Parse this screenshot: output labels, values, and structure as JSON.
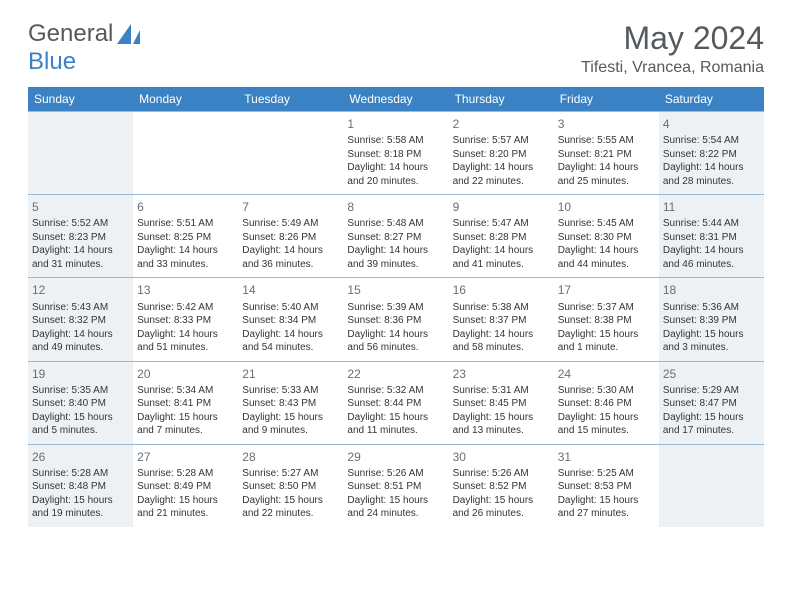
{
  "logo": {
    "text1": "General",
    "text2": "Blue"
  },
  "header": {
    "title": "May 2024",
    "location": "Tifesti, Vrancea, Romania"
  },
  "colors": {
    "header_bg": "#3a82c4",
    "header_text": "#ffffff",
    "shade_bg": "#eef1f4",
    "border": "#98b9d6",
    "logo_gray": "#555a5e",
    "logo_blue": "#3a82c4",
    "text": "#343434",
    "daynum": "#6a6f74"
  },
  "weekdays": [
    "Sunday",
    "Monday",
    "Tuesday",
    "Wednesday",
    "Thursday",
    "Friday",
    "Saturday"
  ],
  "weeks": [
    [
      {
        "empty": true,
        "shaded": true
      },
      {
        "empty": true,
        "shaded": false
      },
      {
        "empty": true,
        "shaded": false
      },
      {
        "num": "1",
        "shaded": false,
        "l1": "Sunrise: 5:58 AM",
        "l2": "Sunset: 8:18 PM",
        "l3": "Daylight: 14 hours",
        "l4": "and 20 minutes."
      },
      {
        "num": "2",
        "shaded": false,
        "l1": "Sunrise: 5:57 AM",
        "l2": "Sunset: 8:20 PM",
        "l3": "Daylight: 14 hours",
        "l4": "and 22 minutes."
      },
      {
        "num": "3",
        "shaded": false,
        "l1": "Sunrise: 5:55 AM",
        "l2": "Sunset: 8:21 PM",
        "l3": "Daylight: 14 hours",
        "l4": "and 25 minutes."
      },
      {
        "num": "4",
        "shaded": true,
        "l1": "Sunrise: 5:54 AM",
        "l2": "Sunset: 8:22 PM",
        "l3": "Daylight: 14 hours",
        "l4": "and 28 minutes."
      }
    ],
    [
      {
        "num": "5",
        "shaded": true,
        "l1": "Sunrise: 5:52 AM",
        "l2": "Sunset: 8:23 PM",
        "l3": "Daylight: 14 hours",
        "l4": "and 31 minutes."
      },
      {
        "num": "6",
        "shaded": false,
        "l1": "Sunrise: 5:51 AM",
        "l2": "Sunset: 8:25 PM",
        "l3": "Daylight: 14 hours",
        "l4": "and 33 minutes."
      },
      {
        "num": "7",
        "shaded": false,
        "l1": "Sunrise: 5:49 AM",
        "l2": "Sunset: 8:26 PM",
        "l3": "Daylight: 14 hours",
        "l4": "and 36 minutes."
      },
      {
        "num": "8",
        "shaded": false,
        "l1": "Sunrise: 5:48 AM",
        "l2": "Sunset: 8:27 PM",
        "l3": "Daylight: 14 hours",
        "l4": "and 39 minutes."
      },
      {
        "num": "9",
        "shaded": false,
        "l1": "Sunrise: 5:47 AM",
        "l2": "Sunset: 8:28 PM",
        "l3": "Daylight: 14 hours",
        "l4": "and 41 minutes."
      },
      {
        "num": "10",
        "shaded": false,
        "l1": "Sunrise: 5:45 AM",
        "l2": "Sunset: 8:30 PM",
        "l3": "Daylight: 14 hours",
        "l4": "and 44 minutes."
      },
      {
        "num": "11",
        "shaded": true,
        "l1": "Sunrise: 5:44 AM",
        "l2": "Sunset: 8:31 PM",
        "l3": "Daylight: 14 hours",
        "l4": "and 46 minutes."
      }
    ],
    [
      {
        "num": "12",
        "shaded": true,
        "l1": "Sunrise: 5:43 AM",
        "l2": "Sunset: 8:32 PM",
        "l3": "Daylight: 14 hours",
        "l4": "and 49 minutes."
      },
      {
        "num": "13",
        "shaded": false,
        "l1": "Sunrise: 5:42 AM",
        "l2": "Sunset: 8:33 PM",
        "l3": "Daylight: 14 hours",
        "l4": "and 51 minutes."
      },
      {
        "num": "14",
        "shaded": false,
        "l1": "Sunrise: 5:40 AM",
        "l2": "Sunset: 8:34 PM",
        "l3": "Daylight: 14 hours",
        "l4": "and 54 minutes."
      },
      {
        "num": "15",
        "shaded": false,
        "l1": "Sunrise: 5:39 AM",
        "l2": "Sunset: 8:36 PM",
        "l3": "Daylight: 14 hours",
        "l4": "and 56 minutes."
      },
      {
        "num": "16",
        "shaded": false,
        "l1": "Sunrise: 5:38 AM",
        "l2": "Sunset: 8:37 PM",
        "l3": "Daylight: 14 hours",
        "l4": "and 58 minutes."
      },
      {
        "num": "17",
        "shaded": false,
        "l1": "Sunrise: 5:37 AM",
        "l2": "Sunset: 8:38 PM",
        "l3": "Daylight: 15 hours",
        "l4": "and 1 minute."
      },
      {
        "num": "18",
        "shaded": true,
        "l1": "Sunrise: 5:36 AM",
        "l2": "Sunset: 8:39 PM",
        "l3": "Daylight: 15 hours",
        "l4": "and 3 minutes."
      }
    ],
    [
      {
        "num": "19",
        "shaded": true,
        "l1": "Sunrise: 5:35 AM",
        "l2": "Sunset: 8:40 PM",
        "l3": "Daylight: 15 hours",
        "l4": "and 5 minutes."
      },
      {
        "num": "20",
        "shaded": false,
        "l1": "Sunrise: 5:34 AM",
        "l2": "Sunset: 8:41 PM",
        "l3": "Daylight: 15 hours",
        "l4": "and 7 minutes."
      },
      {
        "num": "21",
        "shaded": false,
        "l1": "Sunrise: 5:33 AM",
        "l2": "Sunset: 8:43 PM",
        "l3": "Daylight: 15 hours",
        "l4": "and 9 minutes."
      },
      {
        "num": "22",
        "shaded": false,
        "l1": "Sunrise: 5:32 AM",
        "l2": "Sunset: 8:44 PM",
        "l3": "Daylight: 15 hours",
        "l4": "and 11 minutes."
      },
      {
        "num": "23",
        "shaded": false,
        "l1": "Sunrise: 5:31 AM",
        "l2": "Sunset: 8:45 PM",
        "l3": "Daylight: 15 hours",
        "l4": "and 13 minutes."
      },
      {
        "num": "24",
        "shaded": false,
        "l1": "Sunrise: 5:30 AM",
        "l2": "Sunset: 8:46 PM",
        "l3": "Daylight: 15 hours",
        "l4": "and 15 minutes."
      },
      {
        "num": "25",
        "shaded": true,
        "l1": "Sunrise: 5:29 AM",
        "l2": "Sunset: 8:47 PM",
        "l3": "Daylight: 15 hours",
        "l4": "and 17 minutes."
      }
    ],
    [
      {
        "num": "26",
        "shaded": true,
        "l1": "Sunrise: 5:28 AM",
        "l2": "Sunset: 8:48 PM",
        "l3": "Daylight: 15 hours",
        "l4": "and 19 minutes."
      },
      {
        "num": "27",
        "shaded": false,
        "l1": "Sunrise: 5:28 AM",
        "l2": "Sunset: 8:49 PM",
        "l3": "Daylight: 15 hours",
        "l4": "and 21 minutes."
      },
      {
        "num": "28",
        "shaded": false,
        "l1": "Sunrise: 5:27 AM",
        "l2": "Sunset: 8:50 PM",
        "l3": "Daylight: 15 hours",
        "l4": "and 22 minutes."
      },
      {
        "num": "29",
        "shaded": false,
        "l1": "Sunrise: 5:26 AM",
        "l2": "Sunset: 8:51 PM",
        "l3": "Daylight: 15 hours",
        "l4": "and 24 minutes."
      },
      {
        "num": "30",
        "shaded": false,
        "l1": "Sunrise: 5:26 AM",
        "l2": "Sunset: 8:52 PM",
        "l3": "Daylight: 15 hours",
        "l4": "and 26 minutes."
      },
      {
        "num": "31",
        "shaded": false,
        "l1": "Sunrise: 5:25 AM",
        "l2": "Sunset: 8:53 PM",
        "l3": "Daylight: 15 hours",
        "l4": "and 27 minutes."
      },
      {
        "empty": true,
        "shaded": true
      }
    ]
  ]
}
